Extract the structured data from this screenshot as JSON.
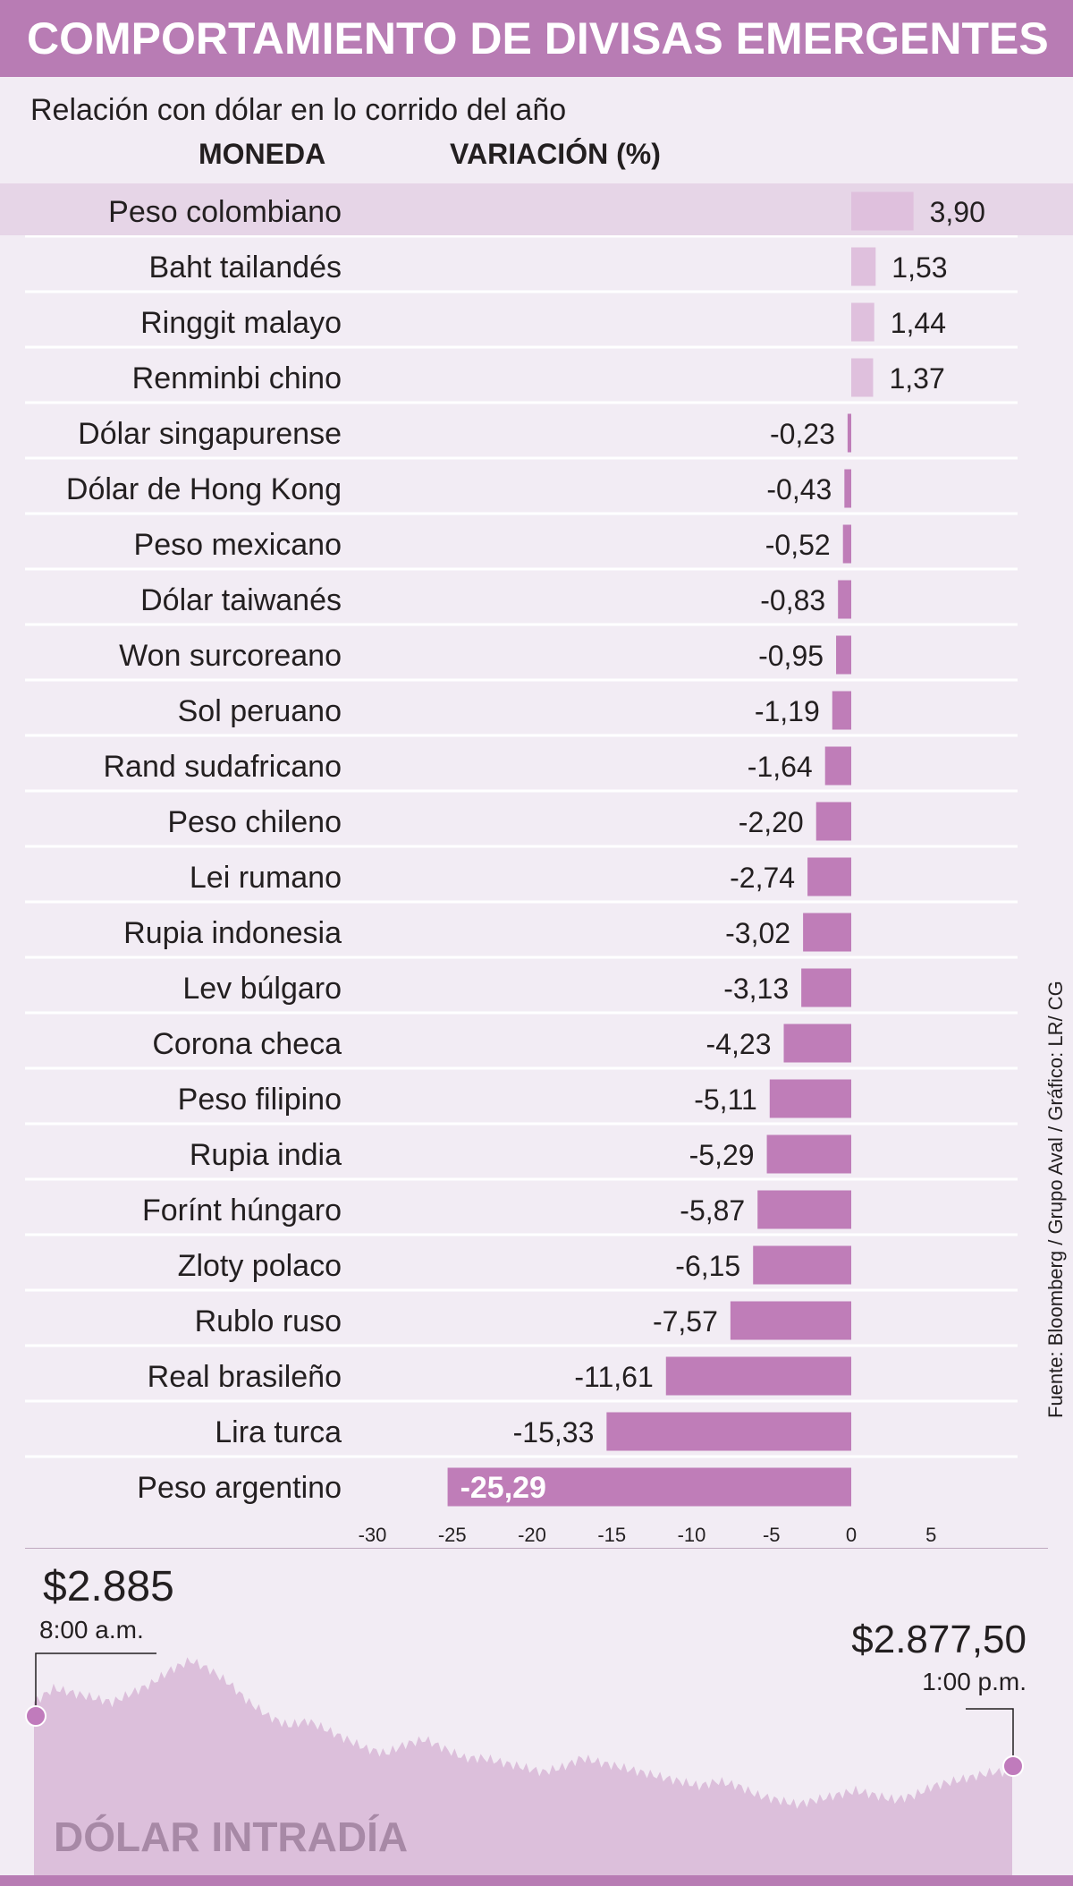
{
  "header": {
    "title": "COMPORTAMIENTO DE DIVISAS EMERGENTES",
    "subtitle": "Relación con dólar en lo corrido del año",
    "col_moneda": "MONEDA",
    "col_variacion": "VARIACIÓN (%)"
  },
  "source": "Fuente: Bloomberg / Grupo Aval / Gráfico: LR/ CG",
  "colors": {
    "title_bar": "#b87cb4",
    "background": "#f2ecf4",
    "negative_bar": "#bf7db8",
    "positive_bar": "#dfc0dd",
    "highlight_row": "#e6d5e7",
    "intraday_area": "#dcbfdb",
    "intraday_label": "#a789a6"
  },
  "chart_data": [
    {
      "type": "bar",
      "orientation": "horizontal",
      "categories": [
        "Peso colombiano",
        "Baht tailandés",
        "Ringgit malayo",
        "Renminbi chino",
        "Dólar singapurense",
        "Dólar de Hong Kong",
        "Peso mexicano",
        "Dólar taiwanés",
        "Won surcoreano",
        "Sol peruano",
        "Rand sudafricano",
        "Peso chileno",
        "Lei rumano",
        "Rupia indonesia",
        "Lev búlgaro",
        "Corona checa",
        "Peso filipino",
        "Rupia india",
        "Forínt húngaro",
        "Zloty polaco",
        "Rublo ruso",
        "Real brasileño",
        "Lira turca",
        "Peso argentino"
      ],
      "values": [
        3.9,
        1.53,
        1.44,
        1.37,
        -0.23,
        -0.43,
        -0.52,
        -0.83,
        -0.95,
        -1.19,
        -1.64,
        -2.2,
        -2.74,
        -3.02,
        -3.13,
        -4.23,
        -5.11,
        -5.29,
        -5.87,
        -6.15,
        -7.57,
        -11.61,
        -15.33,
        -25.29
      ],
      "value_labels": [
        "3,90",
        "1,53",
        "1,44",
        "1,37",
        "-0,23",
        "-0,43",
        "-0,52",
        "-0,83",
        "-0,95",
        "-1,19",
        "-1,64",
        "-2,20",
        "-2,74",
        "-3,02",
        "-3,13",
        "-4,23",
        "-5,11",
        "-5,29",
        "-5,87",
        "-6,15",
        "-7,57",
        "-11,61",
        "-15,33",
        "-25,29"
      ],
      "highlighted": "Peso colombiano",
      "xlim": [
        -30,
        5
      ],
      "xticks": [
        -30,
        -25,
        -20,
        -15,
        -10,
        -5,
        0,
        5
      ],
      "xtick_labels": [
        "-30",
        "-25",
        "-20",
        "-15",
        "-10",
        "-5",
        "0",
        "5"
      ]
    },
    {
      "type": "area",
      "title": "DÓLAR INTRADÍA",
      "open": {
        "price": "$2.885",
        "time": "8:00 a.m.",
        "value": 2885
      },
      "close": {
        "price": "$2.877,50",
        "time": "1:00 p.m.",
        "value": 2877.5
      },
      "values": [
        2885,
        2886.5,
        2886,
        2885.5,
        2885,
        2886,
        2887,
        2888.5,
        2889.5,
        2888.5,
        2887,
        2885,
        2883.5,
        2882.5,
        2883,
        2882,
        2881,
        2880,
        2879.5,
        2880.5,
        2881,
        2880,
        2879,
        2879,
        2878.5,
        2878,
        2877.5,
        2878,
        2879,
        2878.5,
        2878,
        2877.5,
        2877,
        2876.5,
        2876,
        2876.5,
        2876,
        2875,
        2874.5,
        2874,
        2874.5,
        2875,
        2875.5,
        2875,
        2874.5,
        2875,
        2876,
        2876.5,
        2877,
        2877.5,
        2877.5
      ],
      "ylim": [
        2866,
        2892
      ]
    }
  ]
}
